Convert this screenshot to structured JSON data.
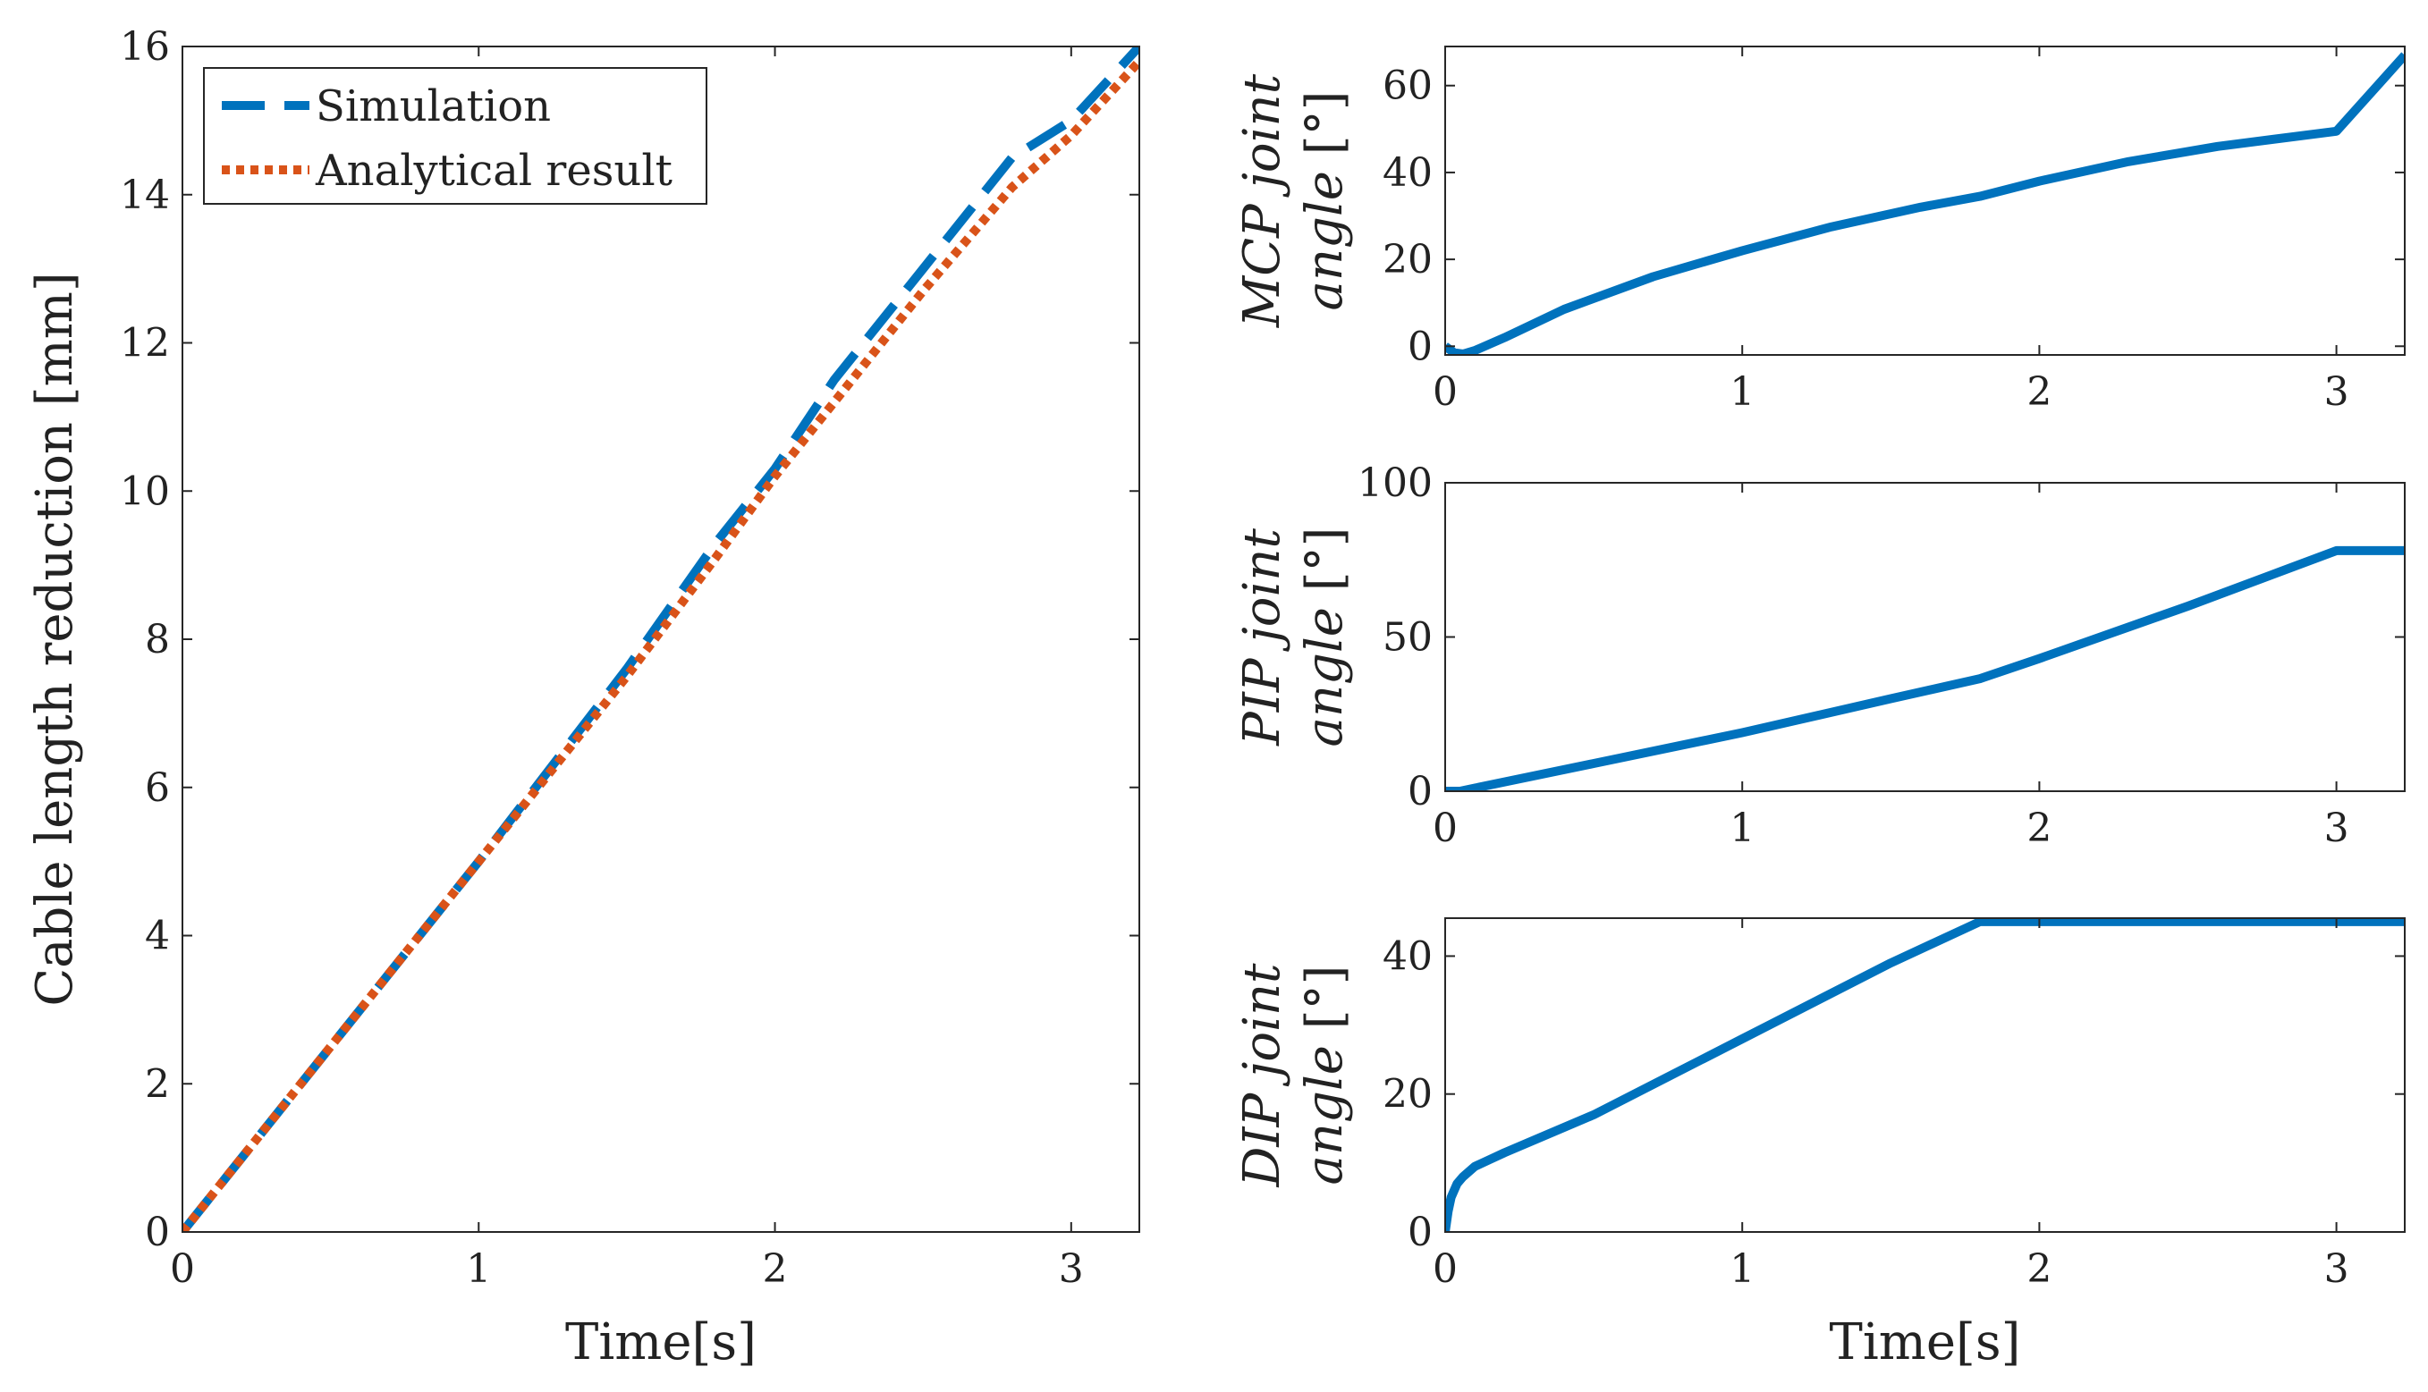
{
  "chart_data": [
    {
      "id": "cable",
      "type": "line",
      "xlabel": "Time[s]",
      "ylabel": "Cable length reduction [mm]",
      "xlim": [
        0,
        3.23
      ],
      "ylim": [
        0,
        16
      ],
      "xticks": [
        0,
        1,
        2,
        3
      ],
      "yticks": [
        0,
        2,
        4,
        6,
        8,
        10,
        12,
        14,
        16
      ],
      "legend": {
        "position": "top-left",
        "entries": [
          "Simulation",
          "Analytical result"
        ]
      },
      "series": [
        {
          "name": "Simulation",
          "color": "#0072BD",
          "style": "dashed",
          "x": [
            0,
            0.5,
            1.0,
            1.5,
            1.8,
            2.0,
            2.2,
            2.5,
            2.8,
            3.0,
            3.23
          ],
          "y": [
            0,
            2.5,
            5.0,
            7.6,
            9.3,
            10.3,
            11.5,
            13.0,
            14.5,
            15.0,
            16.0
          ]
        },
        {
          "name": "Analytical result",
          "color": "#D95319",
          "style": "dotted",
          "x": [
            0,
            0.5,
            1.0,
            1.5,
            1.8,
            2.0,
            2.2,
            2.5,
            2.8,
            3.0,
            3.23
          ],
          "y": [
            0,
            2.5,
            5.0,
            7.5,
            9.1,
            10.2,
            11.2,
            12.7,
            14.1,
            14.8,
            15.8
          ]
        }
      ]
    },
    {
      "id": "mcp",
      "type": "line",
      "xlabel": "",
      "ylabel_lines": [
        {
          "parts": [
            "MCP",
            " joint"
          ]
        },
        {
          "parts": [
            "angle",
            " [°]"
          ]
        }
      ],
      "xlim": [
        0,
        3.23
      ],
      "ylim": [
        -2,
        69
      ],
      "xticks": [
        0,
        1,
        2,
        3
      ],
      "yticks": [
        0,
        20,
        40,
        60
      ],
      "series": [
        {
          "name": "MCP joint angle",
          "color": "#0072BD",
          "x": [
            0,
            0.03,
            0.06,
            0.1,
            0.2,
            0.4,
            0.7,
            1.0,
            1.3,
            1.6,
            1.8,
            2.0,
            2.3,
            2.6,
            3.0,
            3.23
          ],
          "y": [
            0,
            -1.5,
            -1.8,
            -1,
            2,
            8.5,
            16,
            22,
            27.5,
            32,
            34.5,
            38,
            42.5,
            46,
            49.5,
            67
          ]
        }
      ]
    },
    {
      "id": "pip",
      "type": "line",
      "xlabel": "",
      "ylabel_lines": [
        {
          "parts": [
            "PIP",
            " joint"
          ]
        },
        {
          "parts": [
            "angle",
            " [°]"
          ]
        }
      ],
      "xlim": [
        0,
        3.23
      ],
      "ylim": [
        0,
        100
      ],
      "xticks": [
        0,
        1,
        2,
        3
      ],
      "yticks": [
        0,
        50,
        100
      ],
      "series": [
        {
          "name": "PIP joint angle",
          "color": "#0072BD",
          "x": [
            0,
            0.05,
            0.1,
            0.5,
            1.0,
            1.5,
            1.8,
            2.0,
            2.5,
            3.0,
            3.23
          ],
          "y": [
            0,
            0,
            1,
            9,
            19,
            30,
            36.5,
            43,
            60,
            78,
            78
          ]
        }
      ]
    },
    {
      "id": "dip",
      "type": "line",
      "xlabel": "Time[s]",
      "ylabel_lines": [
        {
          "parts": [
            "DIP",
            " joint"
          ]
        },
        {
          "parts": [
            "angle",
            " [°]"
          ]
        }
      ],
      "xlim": [
        0,
        3.23
      ],
      "ylim": [
        0,
        45.5
      ],
      "xticks": [
        0,
        1,
        2,
        3
      ],
      "yticks": [
        0,
        20,
        40
      ],
      "series": [
        {
          "name": "DIP joint angle",
          "color": "#0072BD",
          "x": [
            0,
            0.01,
            0.02,
            0.04,
            0.06,
            0.1,
            0.15,
            0.2,
            0.5,
            1.0,
            1.5,
            1.8,
            2.0,
            2.5,
            3.0,
            3.23
          ],
          "y": [
            0,
            3,
            5,
            7,
            8,
            9.5,
            10.5,
            11.5,
            17,
            28,
            39,
            45,
            45,
            45,
            45,
            45
          ]
        }
      ]
    }
  ]
}
